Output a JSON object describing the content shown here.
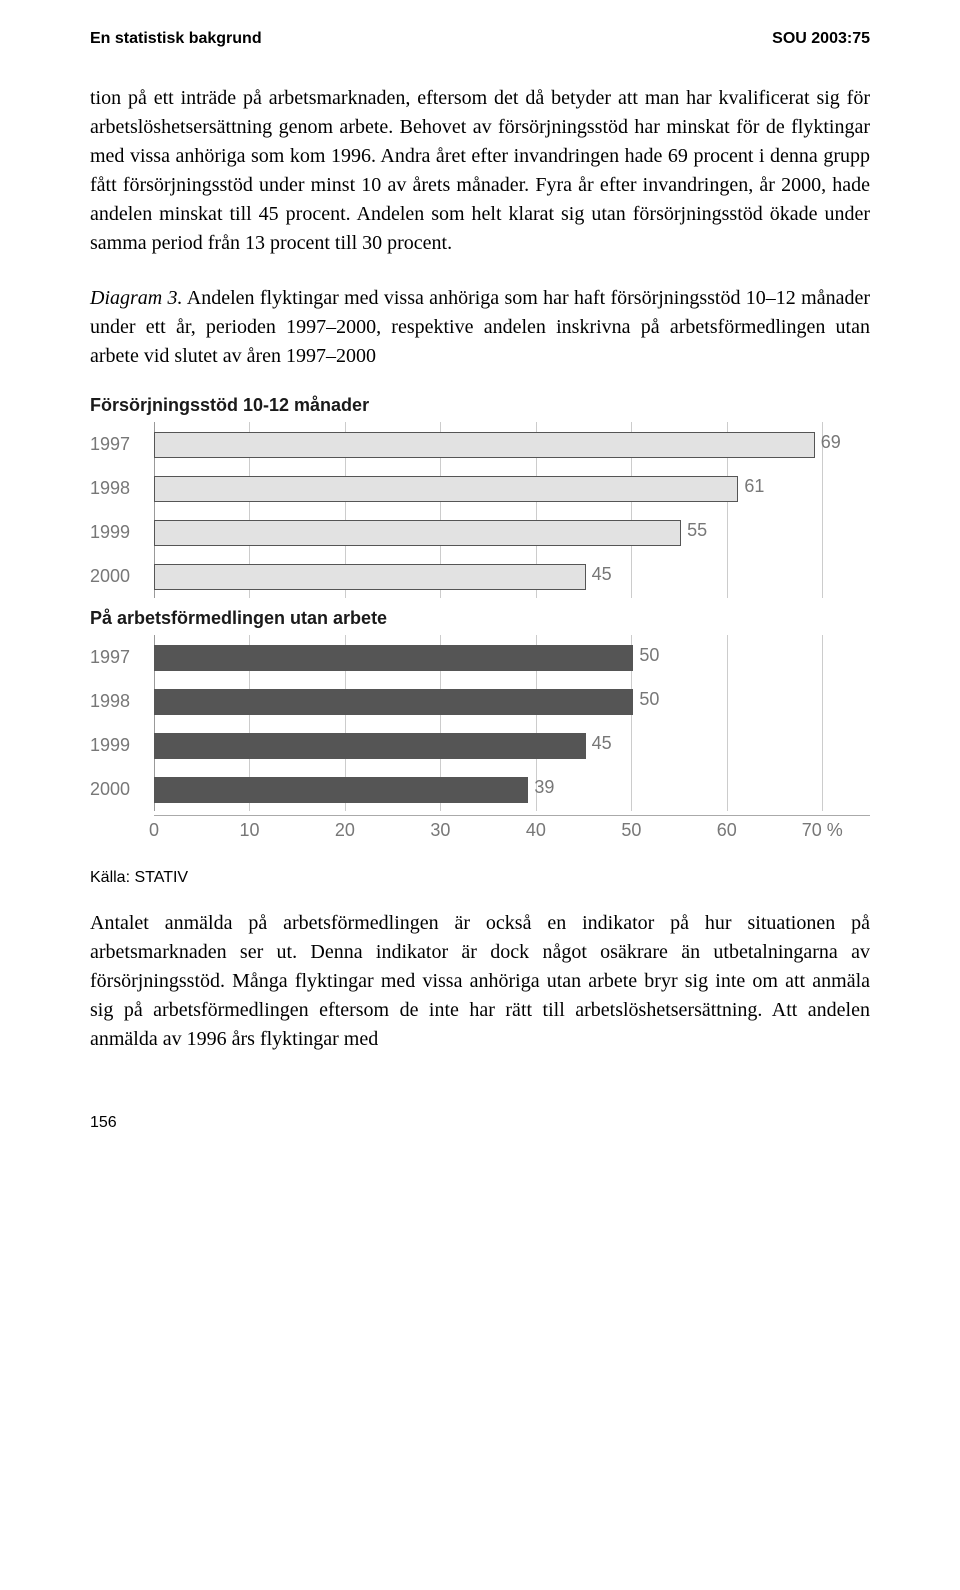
{
  "header": {
    "left": "En statistisk bakgrund",
    "right": "SOU 2003:75"
  },
  "para1": "tion på ett inträde på arbetsmarknaden, eftersom det då betyder att man har kvalificerat sig för arbetslöshetsersättning genom arbete. Behovet av försörjningsstöd har minskat för de flyktingar med vissa anhöriga som kom 1996. Andra året efter invandringen hade 69 procent i denna grupp fått försörjningsstöd under minst 10 av årets månader. Fyra år efter invandringen, år 2000, hade andelen minskat till 45 procent. Andelen som helt klarat sig utan försörjningsstöd ökade under samma period från 13 procent till 30 procent.",
  "caption": {
    "lead": "Diagram 3.",
    "rest": " Andelen flyktingar med vissa anhöriga som har haft försörjningsstöd 10–12 månader under ett år, perioden 1997–2000, respektive andelen inskrivna på arbetsförmedlingen utan arbete vid slutet av åren 1997–2000"
  },
  "chart": {
    "type": "bar-horizontal",
    "xmax": 75,
    "xtick_step": 10,
    "xtick_suffix_last": " %",
    "grid_color": "#cccccc",
    "bar_border": "#555555",
    "light_fill": "#e2e2e2",
    "dark_fill": "#555555",
    "label_color": "#777777",
    "label_fontsize": 18,
    "title_fontsize": 18,
    "sections": [
      {
        "title": "Försörjningsstöd 10-12 månader",
        "color": "light",
        "bars": [
          {
            "label": "1997",
            "value": 69
          },
          {
            "label": "1998",
            "value": 61
          },
          {
            "label": "1999",
            "value": 55
          },
          {
            "label": "2000",
            "value": 45
          }
        ]
      },
      {
        "title": "På arbetsförmedlingen utan arbete",
        "color": "dark",
        "bars": [
          {
            "label": "1997",
            "value": 50
          },
          {
            "label": "1998",
            "value": 50
          },
          {
            "label": "1999",
            "value": 45
          },
          {
            "label": "2000",
            "value": 39
          }
        ]
      }
    ],
    "xticks": [
      0,
      10,
      20,
      30,
      40,
      50,
      60,
      70
    ]
  },
  "source": "Källa: STATIV",
  "para2": "Antalet anmälda på arbetsförmedlingen är också en indikator på hur situationen på arbetsmarknaden ser ut. Denna indikator är dock något osäkrare än utbetalningarna av försörjningsstöd. Många flyktingar med vissa anhöriga utan arbete bryr sig inte om att anmäla sig på arbetsförmedlingen eftersom de inte har rätt till arbetslöshetsersättning. Att andelen anmälda av 1996 års flyktingar med",
  "page_number": "156"
}
